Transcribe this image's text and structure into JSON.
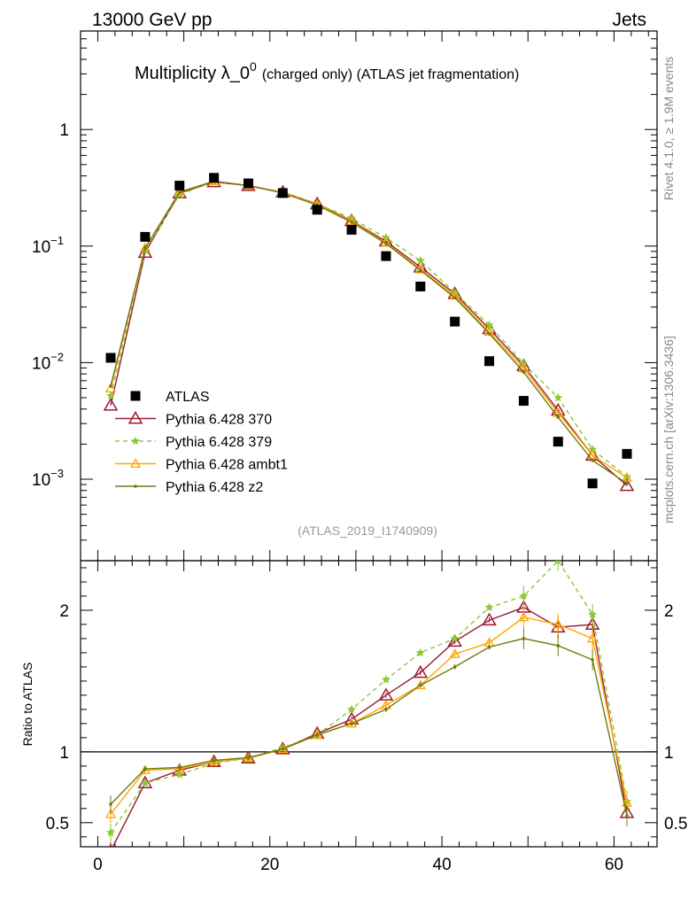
{
  "header": {
    "energy_label": "13000 GeV pp",
    "category_label": "Jets",
    "rivet_label": "Rivet 4.1.0, ≥ 1.9M events",
    "source_label": "mcplots.cern.ch [arXiv:1306.3436]",
    "analysis_label": "(ATLAS_2019_I1740909)"
  },
  "colors": {
    "ATLAS": "#000000",
    "Pythia 6.428 370": "#9b1b30",
    "Pythia 6.428 379": "#8ac832",
    "Pythia 6.428 ambt1": "#ffa500",
    "Pythia 6.428 z2": "#707a10"
  },
  "chart_data": {
    "type": "line",
    "title_main": "Multiplicity λ_0",
    "title_sup": "0",
    "title_sub": "(charged only) (ATLAS jet fragmentation)",
    "x": [
      1.5,
      5.5,
      9.5,
      13.5,
      17.5,
      21.5,
      25.5,
      29.5,
      33.5,
      37.5,
      41.5,
      45.5,
      49.5,
      53.5,
      57.5,
      61.5
    ],
    "xlim": [
      -2,
      65
    ],
    "ylim_main": [
      0.0002,
      7
    ],
    "ylim_ratio": [
      0.33,
      2.35
    ],
    "x_ticks": [
      0,
      20,
      40,
      60
    ],
    "x_tick_labels": [
      "0",
      "20",
      "40",
      "60"
    ],
    "y_main_ticks": [
      0.001,
      0.01,
      0.1,
      1
    ],
    "y_main_base_labels": [
      "10",
      "10",
      "10",
      "1"
    ],
    "y_main_exp_labels": [
      "−3",
      "−2",
      "−1",
      ""
    ],
    "y_ratio_ticks": [
      0.5,
      1,
      2
    ],
    "y_ratio_tick_labels": [
      "0.5",
      "1",
      "2"
    ],
    "ylabel_ratio": "Ratio to ATLAS",
    "data": {
      "name": "ATLAS",
      "values": [
        0.011,
        0.12,
        0.33,
        0.385,
        0.345,
        0.285,
        0.205,
        0.138,
        0.082,
        0.045,
        0.0225,
        0.0103,
        0.0047,
        0.0021,
        0.00092,
        0.00165
      ]
    },
    "series": [
      {
        "name": "Pythia 6.428 370",
        "marker": "triangle",
        "dash": "solid",
        "values": [
          0.0043,
          0.088,
          0.285,
          0.355,
          0.33,
          0.29,
          0.23,
          0.165,
          0.11,
          0.066,
          0.039,
          0.0195,
          0.0094,
          0.0039,
          0.0016,
          0.00088
        ],
        "ratio": [
          0.3,
          0.78,
          0.87,
          0.93,
          0.955,
          1.02,
          1.13,
          1.23,
          1.4,
          1.56,
          1.78,
          1.93,
          2.02,
          1.88,
          1.9,
          0.57
        ]
      },
      {
        "name": "Pythia 6.428 379",
        "marker": "star",
        "dash": "dashed",
        "values": [
          0.0052,
          0.092,
          0.275,
          0.36,
          0.33,
          0.29,
          0.23,
          0.173,
          0.118,
          0.075,
          0.04,
          0.021,
          0.0098,
          0.005,
          0.0018,
          0.00105
        ],
        "ratio": [
          0.43,
          0.78,
          0.84,
          0.92,
          0.955,
          1.03,
          1.12,
          1.3,
          1.51,
          1.7,
          1.8,
          2.02,
          2.1,
          2.35,
          1.97,
          0.65
        ]
      },
      {
        "name": "Pythia 6.428 ambt1",
        "marker": "triangle-small",
        "dash": "solid",
        "values": [
          0.006,
          0.096,
          0.29,
          0.36,
          0.33,
          0.288,
          0.228,
          0.163,
          0.107,
          0.063,
          0.0375,
          0.0183,
          0.0089,
          0.0037,
          0.0016,
          0.00103
        ],
        "ratio": [
          0.56,
          0.87,
          0.88,
          0.93,
          0.955,
          1.02,
          1.12,
          1.2,
          1.33,
          1.47,
          1.69,
          1.77,
          1.95,
          1.9,
          1.8,
          0.64
        ]
      },
      {
        "name": "Pythia 6.428 z2",
        "marker": "dot",
        "dash": "solid",
        "values": [
          0.0063,
          0.096,
          0.29,
          0.36,
          0.33,
          0.285,
          0.225,
          0.16,
          0.105,
          0.062,
          0.036,
          0.0178,
          0.0083,
          0.0034,
          0.00145,
          0.00092
        ],
        "ratio": [
          0.63,
          0.88,
          0.89,
          0.94,
          0.96,
          1.02,
          1.12,
          1.2,
          1.3,
          1.47,
          1.6,
          1.74,
          1.8,
          1.75,
          1.65,
          0.55
        ]
      }
    ],
    "legend_position": "lower-left"
  }
}
